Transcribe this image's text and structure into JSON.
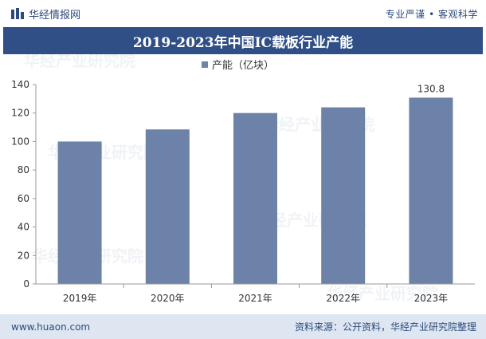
{
  "header": {
    "brand": "华经情报网",
    "slogan": "专业严谨 • 客观科学"
  },
  "footer": {
    "website": "www.huaon.com",
    "source": "资料来源：公开资料，华经产业研究院整理"
  },
  "watermark": "华经产业研究院",
  "colors": {
    "bar": "#6d82a8",
    "title_bg": "#2f4f86",
    "footer_bg": "#dde6f1"
  },
  "chart_data": {
    "type": "bar",
    "title": "2019-2023年中国IC载板行业产能",
    "legend": "产能（亿块）",
    "categories": [
      "2019年",
      "2020年",
      "2021年",
      "2022年",
      "2023年"
    ],
    "values": [
      100,
      108.5,
      120,
      124,
      130.8
    ],
    "data_labels": [
      "",
      "",
      "",
      "",
      "130.8"
    ],
    "ylim": [
      0,
      140
    ],
    "yticks": [
      0,
      20,
      40,
      60,
      80,
      100,
      120,
      140
    ],
    "xlabel": "",
    "ylabel": ""
  }
}
